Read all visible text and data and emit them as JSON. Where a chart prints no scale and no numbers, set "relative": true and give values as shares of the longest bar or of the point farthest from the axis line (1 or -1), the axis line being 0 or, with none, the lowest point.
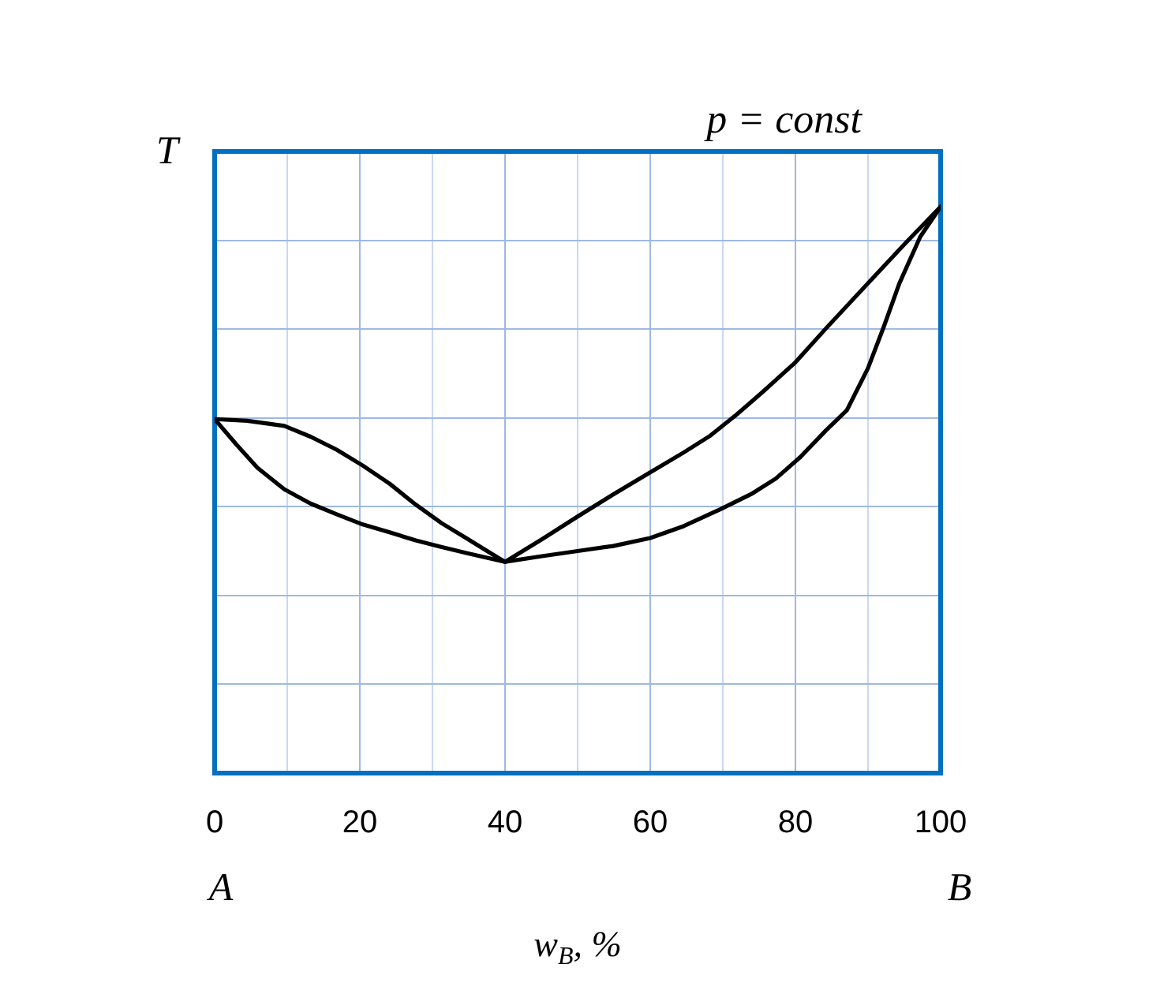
{
  "chart_data": {
    "type": "line",
    "title": "p = const",
    "xlabel": "w$_{B}$, %",
    "ylabel": "T",
    "annotations": [
      "A",
      "B"
    ],
    "relative": true,
    "xlim": [
      0,
      100
    ],
    "xticks": [
      0,
      {
        "value": 10,
        "label": null
      },
      20,
      {
        "value": 30,
        "label": null
      },
      40,
      {
        "value": 50,
        "label": null
      },
      60,
      {
        "value": 70,
        "label": null
      },
      80,
      {
        "value": 90,
        "label": null
      },
      100
    ],
    "grid": true,
    "marker": "none",
    "line_style": "solid",
    "series": [
      {
        "color": "#000000",
        "x": [
          0,
          4.5,
          9.6,
          13.2,
          16.8,
          20.4,
          24.1,
          27.7,
          31.3,
          34.9,
          37.8,
          40,
          45.1,
          50,
          54.9,
          60,
          64.6,
          68.3,
          71.9,
          75.5,
          79.9,
          84.2,
          90,
          95.1,
          100
        ],
        "values": [
          0.625,
          0.622,
          0.613,
          0.594,
          0.571,
          0.543,
          0.511,
          0.474,
          0.441,
          0.413,
          0.39,
          0.373,
          0.413,
          0.453,
          0.492,
          0.531,
          0.566,
          0.596,
          0.633,
          0.673,
          0.724,
          0.785,
          0.865,
          0.935,
          1
        ]
      },
      {
        "color": "#000000",
        "x": [
          0,
          3,
          5.9,
          9.6,
          13.2,
          16.8,
          20.4,
          24.1,
          27.7,
          31.3,
          34.9,
          40,
          45.1,
          50,
          54.9,
          60,
          64.6,
          69.7,
          74.1,
          77.3,
          80.6,
          84.2,
          87.1,
          90,
          92.2,
          94.3,
          97.2,
          100
        ],
        "values": [
          0.625,
          0.58,
          0.539,
          0.501,
          0.476,
          0.457,
          0.439,
          0.425,
          0.411,
          0.399,
          0.388,
          0.373,
          0.383,
          0.392,
          0.401,
          0.415,
          0.436,
          0.466,
          0.494,
          0.52,
          0.557,
          0.605,
          0.641,
          0.715,
          0.789,
          0.864,
          0.947,
          1
        ]
      }
    ]
  }
}
